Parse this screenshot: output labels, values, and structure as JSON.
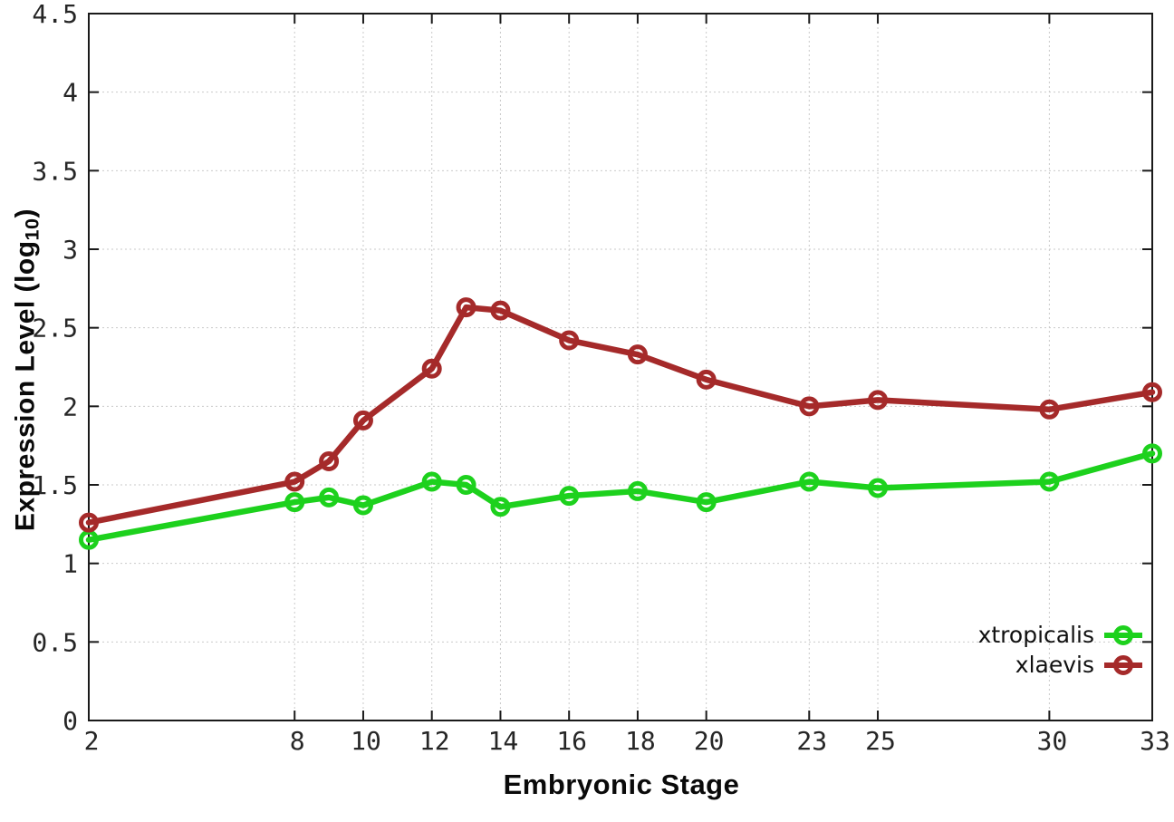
{
  "chart_data": {
    "type": "line",
    "title": "",
    "xlabel": "Embryonic Stage",
    "ylabel": "Expression Level (log10)",
    "ylabel_parts": {
      "pre": "Expression Level (log",
      "sub": "10",
      "post": ")"
    },
    "xlim": [
      2,
      33
    ],
    "ylim": [
      0,
      4.5
    ],
    "grid": true,
    "legend_position": "bottom-right",
    "x": [
      2,
      8,
      9,
      10,
      12,
      13,
      14,
      16,
      18,
      20,
      23,
      25,
      30,
      33
    ],
    "x_tick_values": [
      2,
      8,
      10,
      12,
      14,
      16,
      18,
      20,
      23,
      25,
      30,
      33
    ],
    "x_tick_labels": [
      "2",
      "8",
      "10",
      "12",
      "14",
      "16",
      "18",
      "20",
      "23",
      "25",
      "30",
      "33"
    ],
    "y_tick_values": [
      0,
      0.5,
      1,
      1.5,
      2,
      2.5,
      3,
      3.5,
      4,
      4.5
    ],
    "y_tick_labels": [
      "0",
      "0.5",
      "1",
      "1.5",
      "2",
      "2.5",
      "3",
      "3.5",
      "4",
      "4.5"
    ],
    "series": [
      {
        "name": "xtropicalis",
        "color": "#1dd11d",
        "values": [
          1.15,
          1.39,
          1.42,
          1.37,
          1.52,
          1.5,
          1.36,
          1.43,
          1.46,
          1.39,
          1.52,
          1.48,
          1.52,
          1.7
        ]
      },
      {
        "name": "xlaevis",
        "color": "#a52a2a",
        "values": [
          1.26,
          1.52,
          1.65,
          1.91,
          2.24,
          2.63,
          2.61,
          2.42,
          2.33,
          2.17,
          2.0,
          2.04,
          1.98,
          2.09
        ]
      }
    ],
    "colors": {
      "grid": "#c9c9c9",
      "axis": "#1a1a1a",
      "tick_text": "#262626"
    }
  }
}
